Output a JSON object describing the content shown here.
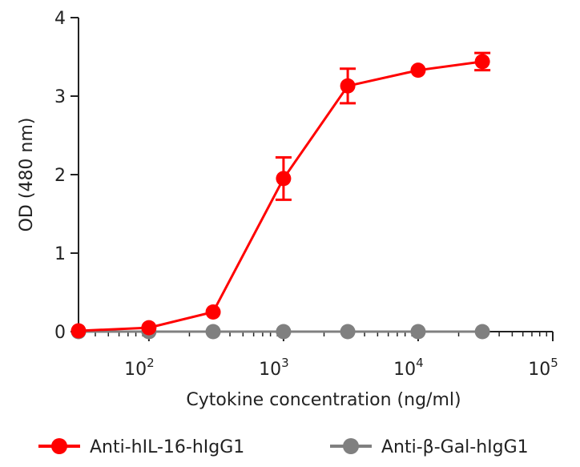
{
  "chart_data": {
    "type": "line",
    "title": "",
    "xlabel": "Cytokine concentration (ng/ml)",
    "ylabel": "OD (480 nm)",
    "xscale": "log",
    "xlim": [
      30,
      100000
    ],
    "ylim": [
      0,
      4
    ],
    "x_ticks": [
      {
        "value": 100,
        "base": "10",
        "exp": "2"
      },
      {
        "value": 1000,
        "base": "10",
        "exp": "3"
      },
      {
        "value": 10000,
        "base": "10",
        "exp": "4"
      },
      {
        "value": 100000,
        "base": "10",
        "exp": "5"
      }
    ],
    "y_ticks": [
      {
        "value": 0,
        "label": "0"
      },
      {
        "value": 1,
        "label": "1"
      },
      {
        "value": 2,
        "label": "2"
      },
      {
        "value": 3,
        "label": "3"
      },
      {
        "value": 4,
        "label": "4"
      }
    ],
    "grid": false,
    "legend_position": "bottom",
    "series": [
      {
        "name": "Anti-hIL-16-hIgG1",
        "color": "#ff0000",
        "x": [
          30,
          100,
          300,
          1000,
          3000,
          10000,
          30000
        ],
        "y": [
          0.01,
          0.05,
          0.25,
          1.95,
          3.13,
          3.33,
          3.44
        ],
        "error": [
          0,
          0,
          0,
          0.27,
          0.22,
          0,
          0.11
        ]
      },
      {
        "name": "Anti-β-Gal-hIgG1",
        "color": "#808080",
        "x": [
          30,
          100,
          300,
          1000,
          3000,
          10000,
          30000
        ],
        "y": [
          0.0,
          0.0,
          0.0,
          0.0,
          0.0,
          0.0,
          0.0
        ],
        "error": [
          0,
          0,
          0,
          0,
          0,
          0,
          0
        ]
      }
    ]
  }
}
